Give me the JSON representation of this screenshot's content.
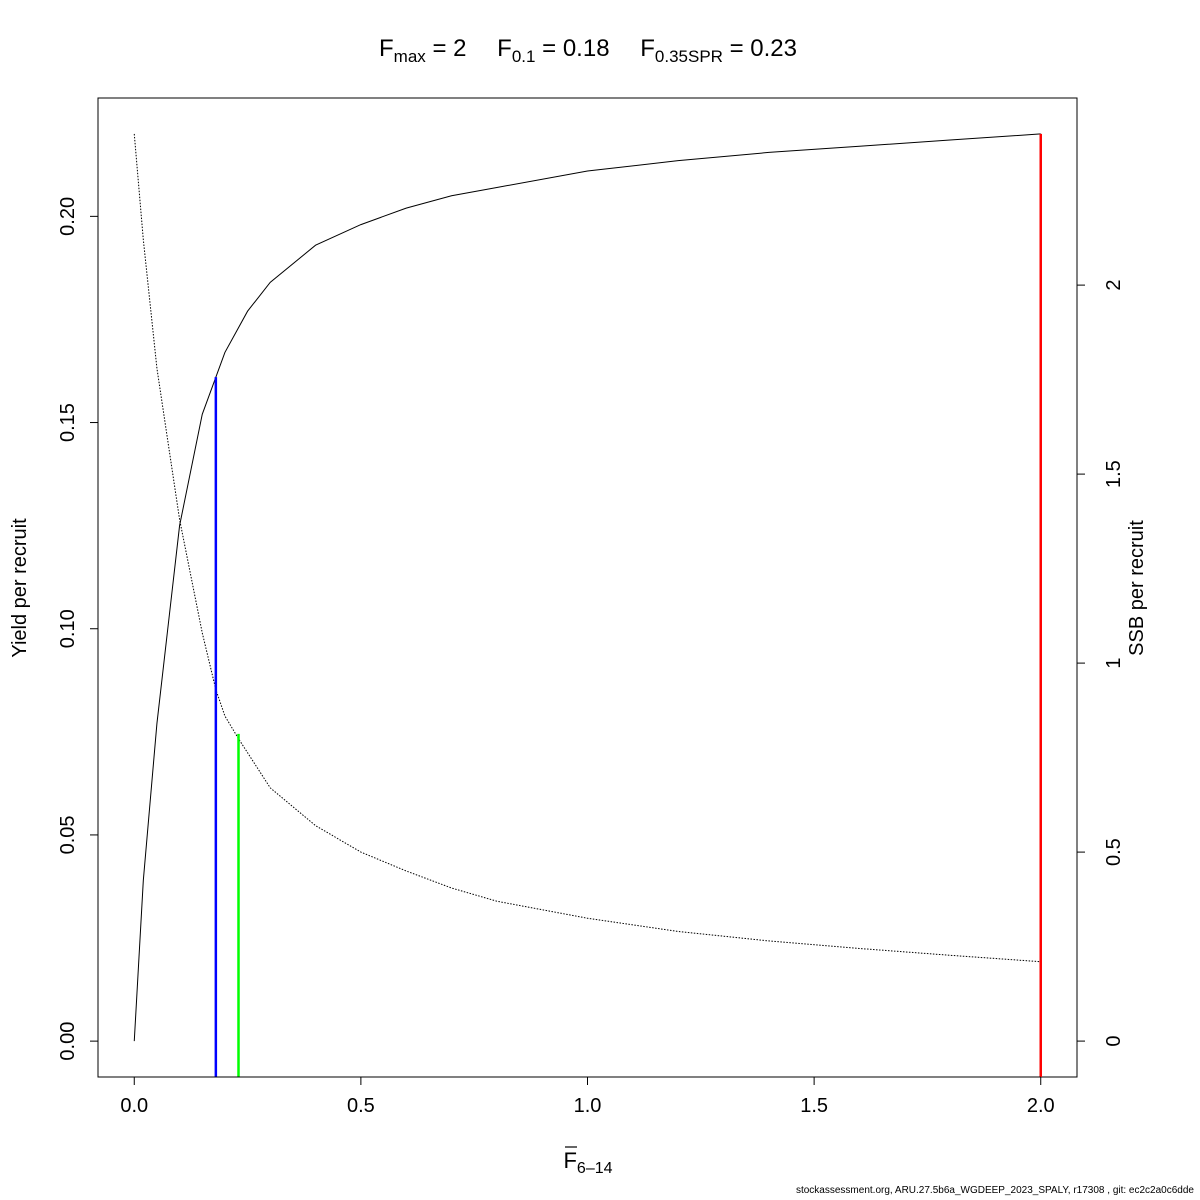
{
  "chart_data": {
    "type": "line",
    "title": {
      "parts": [
        {
          "base": "F",
          "sub": "max",
          "eq": "=",
          "value": "2"
        },
        {
          "base": "F",
          "sub": "0.1",
          "eq": "=",
          "value": "0.18"
        },
        {
          "base": "F",
          "sub": "0.35SPR",
          "eq": "=",
          "value": "0.23"
        }
      ]
    },
    "xlabel": {
      "base": "F",
      "sub": "6–14",
      "overbar": true
    },
    "ylabel_left": "Yield per recruit",
    "ylabel_right": "SSB per recruit",
    "xlim": [
      -0.08,
      2.08
    ],
    "ylim_left": [
      -0.0087,
      0.2287
    ],
    "ylim_right": [
      -0.095,
      2.495
    ],
    "x_ticks": [
      0.0,
      0.5,
      1.0,
      1.5,
      2.0
    ],
    "x_tick_labels": [
      "0.0",
      "0.5",
      "1.0",
      "1.5",
      "2.0"
    ],
    "y_left_ticks": [
      0.0,
      0.05,
      0.1,
      0.15,
      0.2
    ],
    "y_left_tick_labels": [
      "0.00",
      "0.05",
      "0.10",
      "0.15",
      "0.20"
    ],
    "y_right_ticks": [
      0,
      0.5,
      1,
      1.5,
      2
    ],
    "y_right_tick_labels": [
      "0",
      "0.5",
      "1",
      "1.5",
      "2"
    ],
    "grid": false,
    "series": [
      {
        "axis": "left",
        "style": "solid",
        "color": "#000000",
        "x": [
          0,
          0.02,
          0.05,
          0.1,
          0.15,
          0.18,
          0.2,
          0.25,
          0.3,
          0.4,
          0.5,
          0.6,
          0.7,
          0.8,
          1.0,
          1.2,
          1.4,
          1.6,
          1.8,
          2.0
        ],
        "y": [
          0,
          0.039,
          0.077,
          0.125,
          0.152,
          0.161,
          0.167,
          0.177,
          0.184,
          0.193,
          0.198,
          0.202,
          0.205,
          0.207,
          0.211,
          0.2135,
          0.2155,
          0.217,
          0.2185,
          0.22
        ]
      },
      {
        "axis": "right",
        "style": "dotted",
        "color": "#000000",
        "x": [
          0,
          0.02,
          0.05,
          0.1,
          0.15,
          0.18,
          0.2,
          0.23,
          0.3,
          0.4,
          0.5,
          0.6,
          0.7,
          0.8,
          1.0,
          1.2,
          1.4,
          1.6,
          1.8,
          2.0
        ],
        "y": [
          2.4,
          2.12,
          1.78,
          1.38,
          1.08,
          0.93,
          0.86,
          0.8,
          0.67,
          0.57,
          0.5,
          0.45,
          0.405,
          0.37,
          0.325,
          0.29,
          0.265,
          0.245,
          0.227,
          0.21
        ]
      }
    ],
    "reference_lines": [
      {
        "name": "F0.1",
        "color": "#0000ff",
        "x": 0.18,
        "y_top": 0.161
      },
      {
        "name": "F0.35SPR",
        "color": "#00ff00",
        "x": 0.23,
        "y_top": 0.0745
      },
      {
        "name": "Fmax",
        "color": "#ff0000",
        "x": 2.0,
        "y_top": 0.22
      }
    ]
  },
  "footer": "stockassessment.org, ARU.27.5b6a_WGDEEP_2023_SPALY, r17308 , git: ec2c2a0c6dde"
}
